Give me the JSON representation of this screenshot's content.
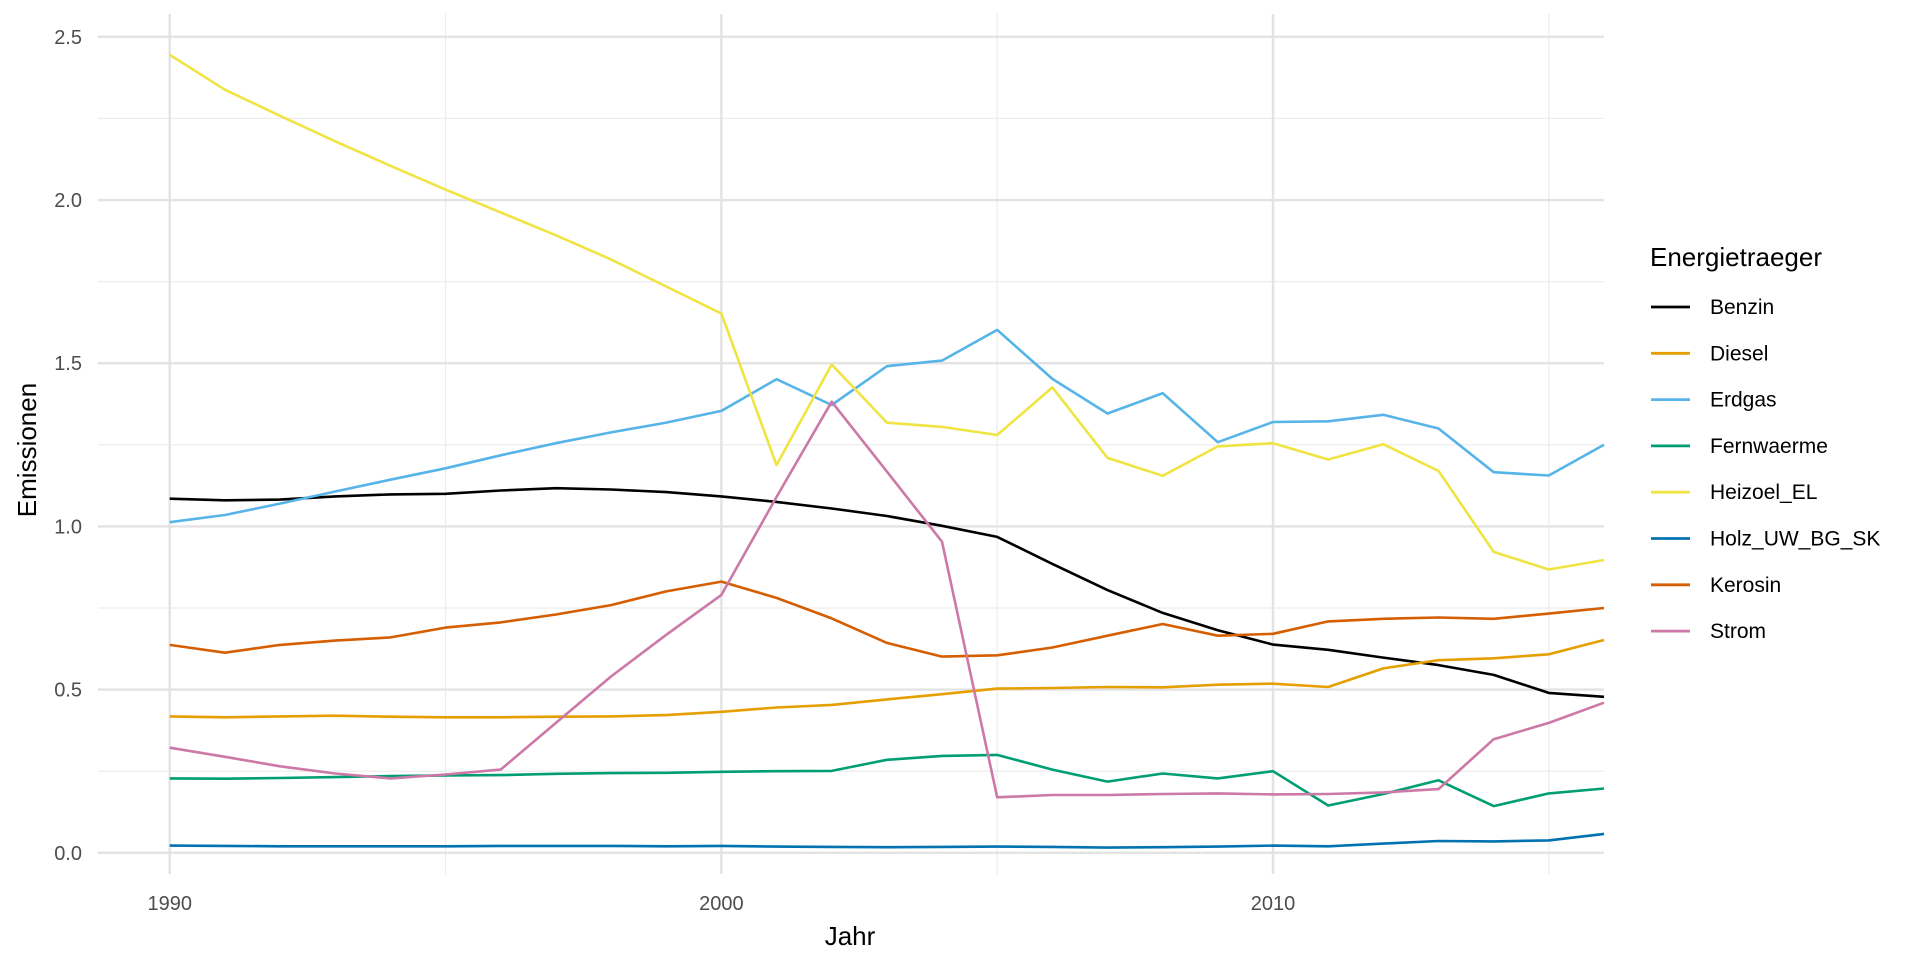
{
  "chart_data": {
    "type": "line",
    "xlabel": "Jahr",
    "ylabel": "Emissionen",
    "xlim": [
      1988.7,
      2016.0
    ],
    "ylim": [
      -0.065,
      2.57
    ],
    "x_ticks": [
      1990,
      2000,
      2010
    ],
    "y_ticks": [
      0.0,
      0.5,
      1.0,
      1.5,
      2.0,
      2.5
    ],
    "y_tick_labels": [
      "0.0",
      "0.5",
      "1.0",
      "1.5",
      "2.0",
      "2.5"
    ],
    "grid": true,
    "legend": {
      "title": "Energietraeger",
      "position": "right"
    },
    "x": [
      1990,
      1991,
      1992,
      1993,
      1994,
      1995,
      1996,
      1997,
      1998,
      1999,
      2000,
      2001,
      2002,
      2003,
      2004,
      2005,
      2006,
      2007,
      2008,
      2009,
      2010,
      2011,
      2012,
      2013,
      2014,
      2015,
      2016
    ],
    "series": [
      {
        "name": "Benzin",
        "color": "#000000",
        "values": [
          1.085,
          1.08,
          1.082,
          1.092,
          1.098,
          1.1,
          1.11,
          1.117,
          1.113,
          1.105,
          1.092,
          1.075,
          1.055,
          1.032,
          1.002,
          0.968,
          0.885,
          0.805,
          0.735,
          0.682,
          0.638,
          0.622,
          0.598,
          0.575,
          0.545,
          0.49,
          0.478
        ]
      },
      {
        "name": "Diesel",
        "color": "#E69F00",
        "values": [
          0.418,
          0.415,
          0.418,
          0.42,
          0.417,
          0.415,
          0.415,
          0.417,
          0.418,
          0.422,
          0.432,
          0.445,
          0.453,
          0.47,
          0.486,
          0.503,
          0.505,
          0.508,
          0.507,
          0.515,
          0.518,
          0.508,
          0.565,
          0.59,
          0.596,
          0.608,
          0.652
        ]
      },
      {
        "name": "Erdgas",
        "color": "#56B4E9",
        "values": [
          1.013,
          1.035,
          1.07,
          1.107,
          1.143,
          1.178,
          1.218,
          1.255,
          1.288,
          1.318,
          1.354,
          1.451,
          1.372,
          1.491,
          1.508,
          1.602,
          1.452,
          1.346,
          1.408,
          1.258,
          1.32,
          1.322,
          1.342,
          1.3,
          1.166,
          1.156,
          1.25
        ]
      },
      {
        "name": "Fernwaerme",
        "color": "#009E73",
        "values": [
          0.228,
          0.227,
          0.229,
          0.232,
          0.235,
          0.237,
          0.238,
          0.242,
          0.244,
          0.245,
          0.248,
          0.25,
          0.251,
          0.285,
          0.297,
          0.3,
          0.255,
          0.218,
          0.243,
          0.228,
          0.25,
          0.145,
          0.18,
          0.222,
          0.143,
          0.182,
          0.197
        ]
      },
      {
        "name": "Heizoel_EL",
        "color": "#F0E442",
        "values": [
          2.445,
          2.338,
          2.258,
          2.18,
          2.105,
          2.032,
          1.962,
          1.892,
          1.818,
          1.735,
          1.652,
          1.188,
          1.496,
          1.318,
          1.305,
          1.28,
          1.426,
          1.21,
          1.155,
          1.245,
          1.255,
          1.205,
          1.252,
          1.17,
          0.922,
          0.868,
          0.897
        ]
      },
      {
        "name": "Holz_UW_BG_SK",
        "color": "#0072B2",
        "values": [
          0.022,
          0.021,
          0.02,
          0.02,
          0.02,
          0.02,
          0.021,
          0.021,
          0.021,
          0.02,
          0.021,
          0.019,
          0.018,
          0.017,
          0.018,
          0.019,
          0.018,
          0.016,
          0.017,
          0.019,
          0.022,
          0.02,
          0.028,
          0.036,
          0.035,
          0.038,
          0.058
        ]
      },
      {
        "name": "Kerosin",
        "color": "#D55E00",
        "values": [
          0.637,
          0.613,
          0.637,
          0.65,
          0.66,
          0.69,
          0.706,
          0.73,
          0.759,
          0.801,
          0.831,
          0.781,
          0.718,
          0.643,
          0.601,
          0.605,
          0.629,
          0.665,
          0.701,
          0.665,
          0.671,
          0.709,
          0.717,
          0.721,
          0.717,
          0.733,
          0.75
        ]
      },
      {
        "name": "Strom",
        "color": "#CC79A7",
        "values": [
          0.322,
          0.294,
          0.265,
          0.243,
          0.228,
          0.24,
          0.255,
          0.398,
          0.54,
          0.668,
          0.79,
          1.09,
          1.382,
          1.168,
          0.953,
          0.17,
          0.177,
          0.177,
          0.18,
          0.182,
          0.179,
          0.18,
          0.185,
          0.195,
          0.348,
          0.398,
          0.46
        ]
      }
    ]
  }
}
